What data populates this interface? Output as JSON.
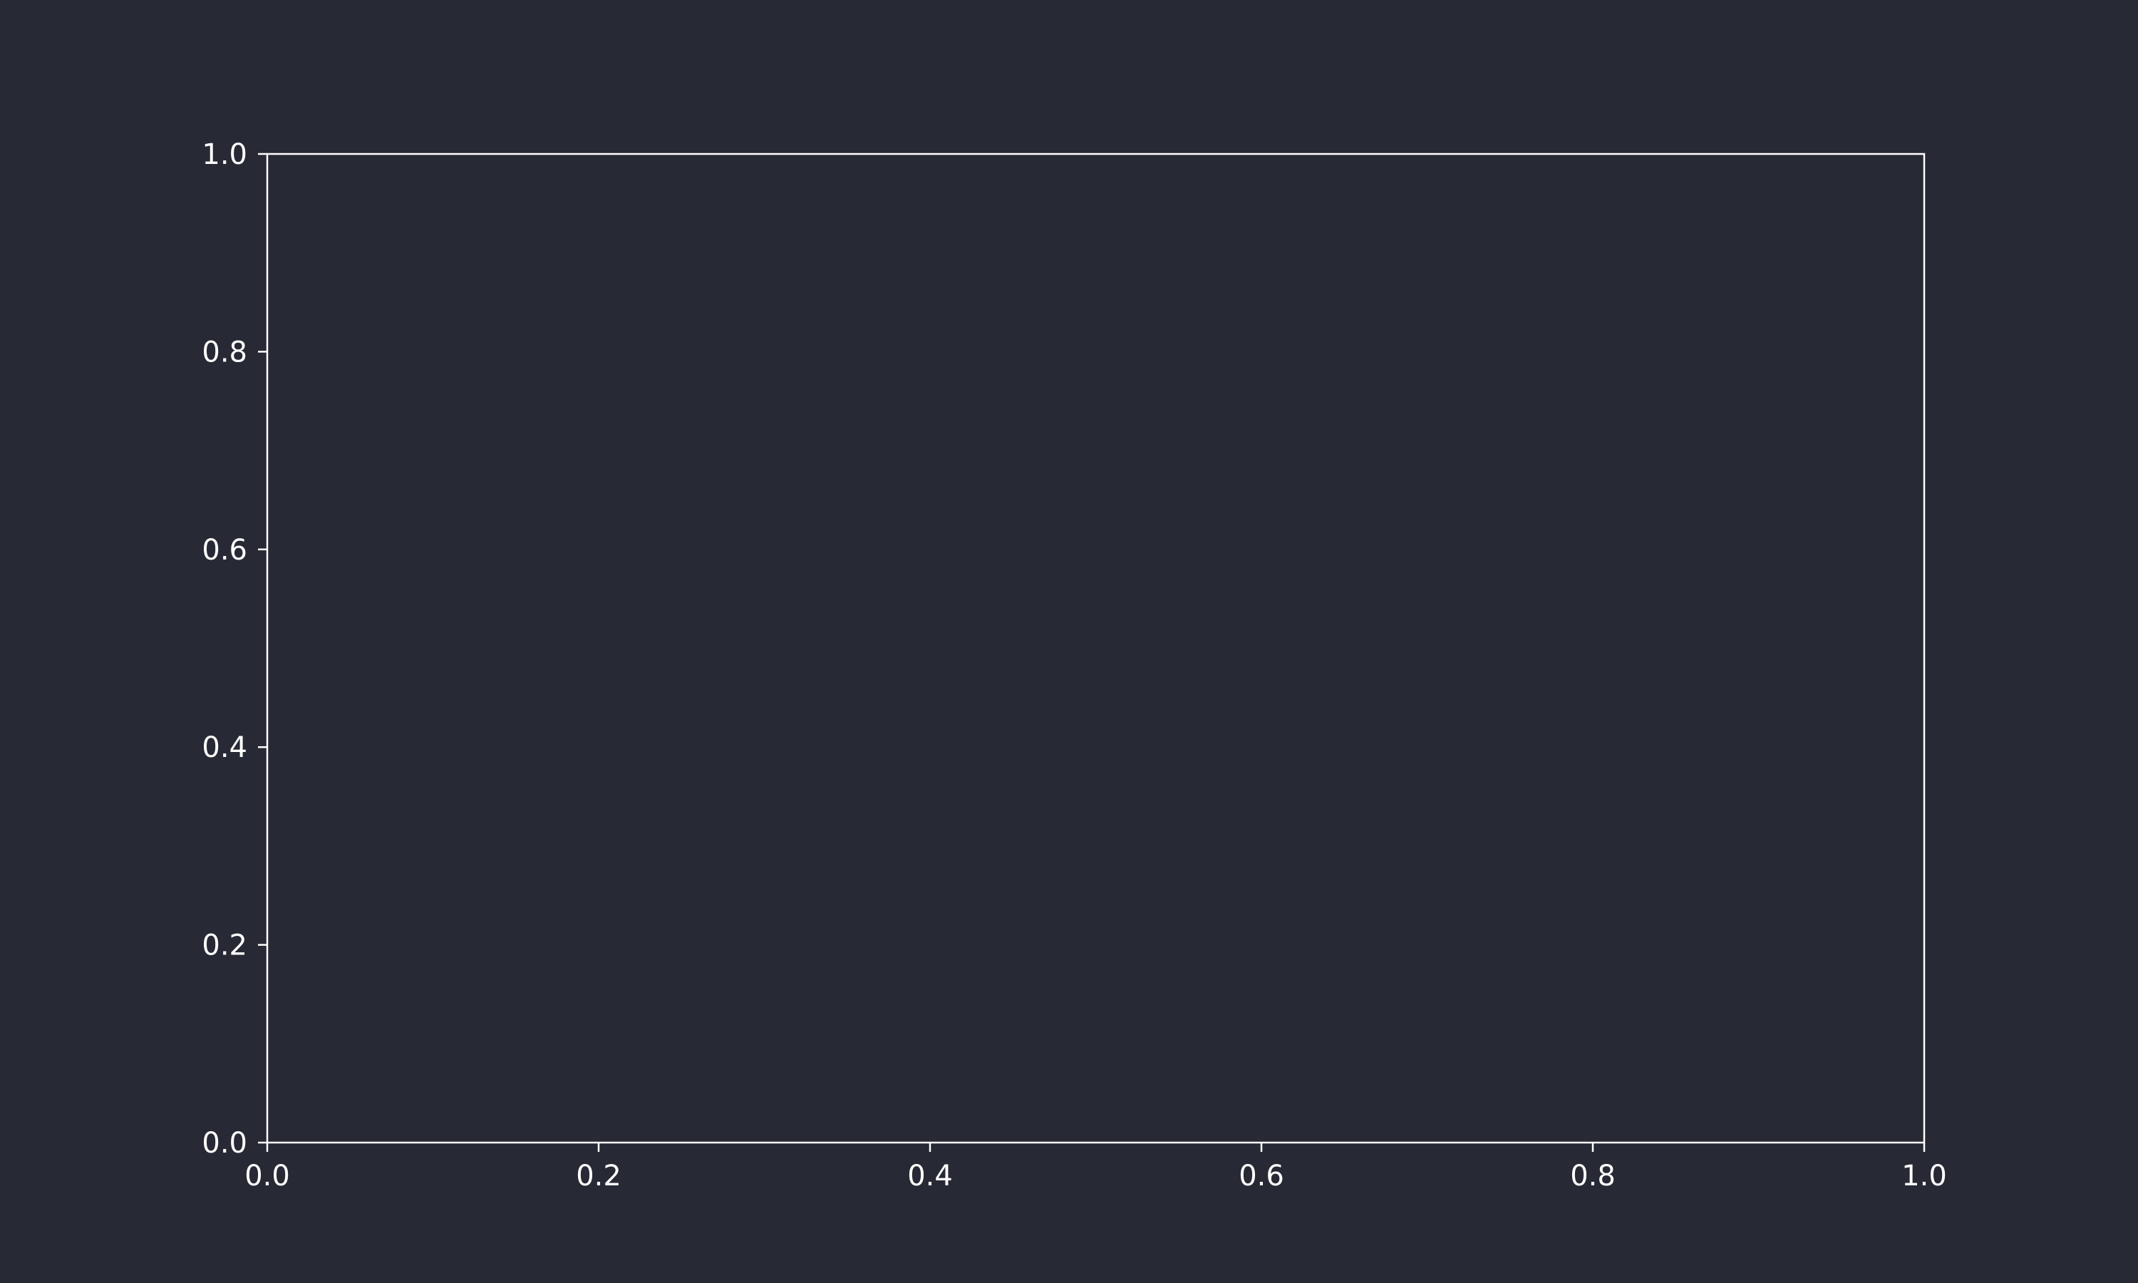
{
  "colors": {
    "background": "#272935",
    "axes": "#ffffff",
    "text": "#ffffff"
  },
  "chart_data": {
    "type": "line",
    "title": "",
    "xlabel": "",
    "ylabel": "",
    "xlim": [
      0.0,
      1.0
    ],
    "ylim": [
      0.0,
      1.0
    ],
    "x_ticks": [
      "0.0",
      "0.2",
      "0.4",
      "0.6",
      "0.8",
      "1.0"
    ],
    "y_ticks": [
      "0.0",
      "0.2",
      "0.4",
      "0.6",
      "0.8",
      "1.0"
    ],
    "series": [],
    "grid": false,
    "legend": "none"
  }
}
